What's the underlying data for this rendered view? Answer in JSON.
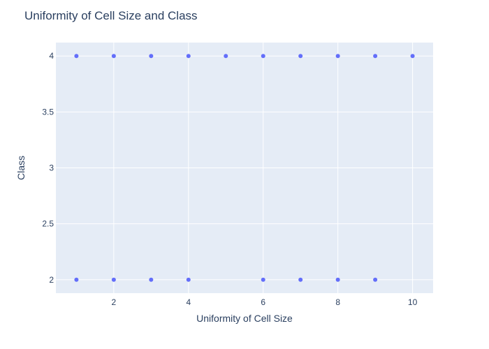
{
  "chart_data": {
    "type": "scatter",
    "title": "Uniformity of Cell Size and Class",
    "xlabel": "Uniformity of Cell Size",
    "ylabel": "Class",
    "xlim": [
      0.45,
      10.55
    ],
    "ylim": [
      1.88,
      4.12
    ],
    "x_ticks": [
      2,
      4,
      6,
      8,
      10
    ],
    "x_tick_labels": [
      "2",
      "4",
      "6",
      "8",
      "10"
    ],
    "y_ticks": [
      2,
      2.5,
      3,
      3.5,
      4
    ],
    "y_tick_labels": [
      "2",
      "2.5",
      "3",
      "3.5",
      "4"
    ],
    "grid": true,
    "series": [
      {
        "color": "#636efa",
        "x": [
          1,
          2,
          3,
          4,
          5,
          6,
          7,
          8,
          9,
          10,
          1,
          2,
          3,
          4,
          6,
          7,
          8,
          9
        ],
        "y": [
          4,
          4,
          4,
          4,
          4,
          4,
          4,
          4,
          4,
          4,
          2,
          2,
          2,
          2,
          2,
          2,
          2,
          2
        ]
      }
    ]
  },
  "colors": {
    "plot_bg": "#e5ecf6",
    "grid": "#ffffff",
    "text": "#2a3f5f",
    "marker": "#636efa"
  }
}
